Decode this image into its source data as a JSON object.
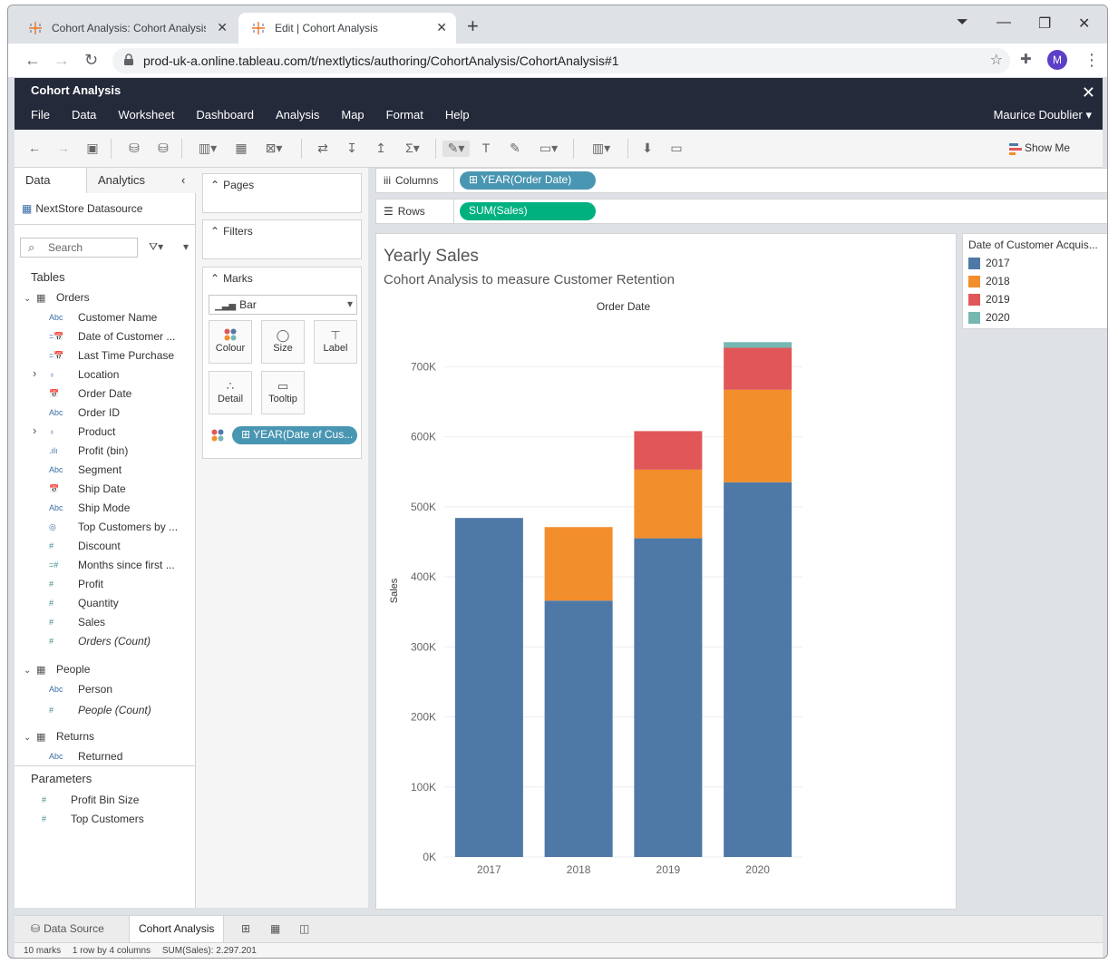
{
  "browser": {
    "tabs": [
      {
        "label": "Cohort Analysis: Cohort Analysis",
        "active": false
      },
      {
        "label": "Edit | Cohort Analysis",
        "active": true
      }
    ],
    "url": "prod-uk-a.online.tableau.com/t/nextlytics/authoring/CohortAnalysis/CohortAnalysis#1",
    "profile_initial": "M"
  },
  "header": {
    "workbook_title": "Cohort Analysis",
    "menu": [
      "File",
      "Data",
      "Worksheet",
      "Dashboard",
      "Analysis",
      "Map",
      "Format",
      "Help"
    ],
    "user": "Maurice Doublier ▾"
  },
  "toolbar": {
    "show_me": "Show Me"
  },
  "data_pane": {
    "tab_data": "Data",
    "tab_analytics": "Analytics",
    "datasource": "NextStore Datasource",
    "search_placeholder": "Search",
    "tables_heading": "Tables",
    "orders_table": "Orders",
    "orders_fields": [
      {
        "icon": "Abc",
        "label": "Customer Name"
      },
      {
        "icon": "=cal",
        "label": "Date of Customer ..."
      },
      {
        "icon": "=cal",
        "label": "Last Time Purchase"
      },
      {
        "icon": "geo",
        "label": "Location"
      },
      {
        "icon": "cal",
        "label": "Order Date"
      },
      {
        "icon": "Abc",
        "label": "Order ID"
      },
      {
        "icon": "hier",
        "label": "Product"
      },
      {
        "icon": "bin",
        "label": "Profit (bin)"
      },
      {
        "icon": "Abc",
        "label": "Segment"
      },
      {
        "icon": "cal",
        "label": "Ship Date"
      },
      {
        "icon": "Abc",
        "label": "Ship Mode"
      },
      {
        "icon": "set",
        "label": "Top Customers by ..."
      },
      {
        "icon": "#",
        "label": "Discount"
      },
      {
        "icon": "=#",
        "label": "Months since first ..."
      },
      {
        "icon": "#",
        "label": "Profit"
      },
      {
        "icon": "#",
        "label": "Quantity"
      },
      {
        "icon": "#",
        "label": "Sales"
      },
      {
        "icon": "#",
        "label": "Orders (Count)"
      }
    ],
    "people_table": "People",
    "people_fields": [
      {
        "icon": "Abc",
        "label": "Person"
      },
      {
        "icon": "#",
        "label": "People (Count)"
      }
    ],
    "returns_table": "Returns",
    "returns_fields": [
      {
        "icon": "Abc",
        "label": "Returned"
      }
    ],
    "parameters_heading": "Parameters",
    "parameters": [
      {
        "icon": "#",
        "label": "Profit Bin Size"
      },
      {
        "icon": "#",
        "label": "Top Customers"
      }
    ]
  },
  "cards": {
    "pages": "Pages",
    "filters": "Filters",
    "marks": "Marks",
    "mark_type": "Bar",
    "mark_buttons": [
      "Colour",
      "Size",
      "Label",
      "Detail",
      "Tooltip"
    ],
    "colour_pill": "YEAR(Date of Cus..."
  },
  "shelves": {
    "columns_label": "Columns",
    "columns_pill": "YEAR(Order Date)",
    "rows_label": "Rows",
    "rows_pill": "SUM(Sales)"
  },
  "legend": {
    "title": "Date of Customer Acquis...",
    "items": [
      {
        "label": "2017",
        "color": "#4e79a7"
      },
      {
        "label": "2018",
        "color": "#f28e2b"
      },
      {
        "label": "2019",
        "color": "#e15759"
      },
      {
        "label": "2020",
        "color": "#76b7b2"
      }
    ]
  },
  "chart_data": {
    "type": "bar",
    "stacked": true,
    "title": "Yearly Sales",
    "subtitle": "Cohort Analysis to measure Customer Retention",
    "xlabel": "Order Date",
    "ylabel": "Sales",
    "categories": [
      "2017",
      "2018",
      "2019",
      "2020"
    ],
    "ylim": [
      0,
      760000
    ],
    "yticks": [
      0,
      100000,
      200000,
      300000,
      400000,
      500000,
      600000,
      700000
    ],
    "ytick_labels": [
      "0K",
      "100K",
      "200K",
      "300K",
      "400K",
      "500K",
      "600K",
      "700K"
    ],
    "series": [
      {
        "name": "2017",
        "color": "#4e79a7",
        "values": [
          484000,
          366000,
          455000,
          535000
        ]
      },
      {
        "name": "2018",
        "color": "#f28e2b",
        "values": [
          0,
          105000,
          98000,
          132000
        ]
      },
      {
        "name": "2019",
        "color": "#e15759",
        "values": [
          0,
          0,
          55000,
          60000
        ]
      },
      {
        "name": "2020",
        "color": "#76b7b2",
        "values": [
          0,
          0,
          0,
          8000
        ]
      }
    ]
  },
  "sheet_tabs": {
    "data_source": "Data Source",
    "active_sheet": "Cohort Analysis"
  },
  "status": {
    "marks": "10 marks",
    "dims": "1 row by 4 columns",
    "sum": "SUM(Sales): 2.297.201"
  }
}
